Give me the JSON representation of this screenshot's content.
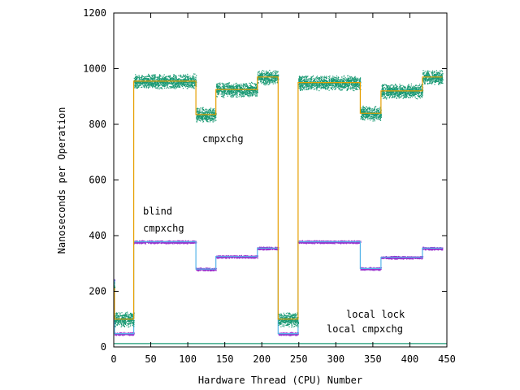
{
  "chart_data": {
    "type": "scatter",
    "title": "",
    "xlabel": "Hardware Thread (CPU) Number",
    "ylabel": "Nanoseconds per Operation",
    "xlim": [
      0,
      450
    ],
    "ylim": [
      0,
      1200
    ],
    "xticks": [
      0,
      50,
      100,
      150,
      200,
      250,
      300,
      350,
      400,
      450
    ],
    "yticks": [
      0,
      200,
      400,
      600,
      800,
      1000,
      1200
    ],
    "grid": false,
    "legend": "none",
    "colors": {
      "cmpxchg_points": "#1a9a74",
      "cmpxchg_median": "#e69f00",
      "blind_points": "#9932cc",
      "blind_median": "#56b4e9",
      "local": "#1a9a74"
    },
    "series": [
      {
        "label_key": "cmpxchg",
        "segments": [
          {
            "x": [
              0,
              1
            ],
            "y": 210
          },
          {
            "x": [
              1,
              27
            ],
            "y": 100
          },
          {
            "x": [
              27,
              111
            ],
            "y": 955
          },
          {
            "x": [
              111,
              138
            ],
            "y": 835
          },
          {
            "x": [
              138,
              194
            ],
            "y": 925
          },
          {
            "x": [
              194,
              222
            ],
            "y": 970
          },
          {
            "x": [
              222,
              249
            ],
            "y": 100
          },
          {
            "x": [
              249,
              333
            ],
            "y": 950
          },
          {
            "x": [
              333,
              361
            ],
            "y": 840
          },
          {
            "x": [
              361,
              417
            ],
            "y": 920
          },
          {
            "x": [
              417,
              444
            ],
            "y": 970
          }
        ]
      },
      {
        "label_key": "blind",
        "segments": [
          {
            "x": [
              0,
              1
            ],
            "y": 240
          },
          {
            "x": [
              1,
              27
            ],
            "y": 48
          },
          {
            "x": [
              27,
              111
            ],
            "y": 378
          },
          {
            "x": [
              111,
              138
            ],
            "y": 280
          },
          {
            "x": [
              138,
              194
            ],
            "y": 325
          },
          {
            "x": [
              194,
              222
            ],
            "y": 355
          },
          {
            "x": [
              222,
              249
            ],
            "y": 48
          },
          {
            "x": [
              249,
              333
            ],
            "y": 378
          },
          {
            "x": [
              333,
              361
            ],
            "y": 282
          },
          {
            "x": [
              361,
              417
            ],
            "y": 322
          },
          {
            "x": [
              417,
              444
            ],
            "y": 355
          }
        ]
      },
      {
        "label_key": "local",
        "segments": [
          {
            "x": [
              0,
              450
            ],
            "y": 12
          }
        ]
      }
    ],
    "annotations": {
      "cmpxchg": "cmpxchg",
      "blind_line1": "blind",
      "blind_line2": "cmpxchg",
      "local_lock": "local lock",
      "local_cmpxchg": "local cmpxchg"
    }
  }
}
